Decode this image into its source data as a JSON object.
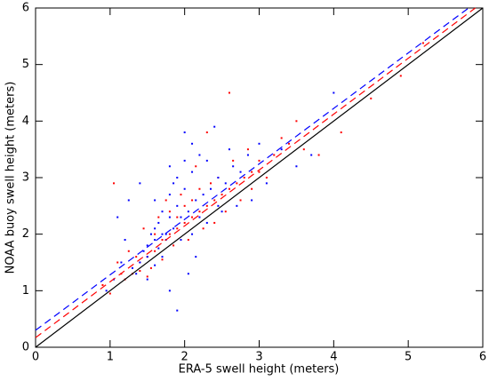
{
  "chart_data": {
    "type": "scatter",
    "xlabel": "ERA-5 swell height (meters)",
    "ylabel": "NOAA buoy swell height (meters)",
    "xlim": [
      0,
      6
    ],
    "ylim": [
      0,
      6
    ],
    "xticks": [
      0,
      1,
      2,
      3,
      4,
      5,
      6
    ],
    "yticks": [
      0,
      1,
      2,
      3,
      4,
      5,
      6
    ],
    "series": [
      {
        "color": "#ff0000",
        "x": [
          1.3,
          1.4,
          1.5,
          1.6,
          1.7,
          1.8,
          1.9,
          2.0,
          2.1,
          2.2,
          2.3,
          2.4,
          2.5,
          2.6,
          2.7,
          2.8,
          2.9,
          3.0,
          3.2,
          3.4,
          3.6,
          3.8,
          3.0,
          3.3,
          2.6,
          4.5,
          5.2,
          4.9,
          1.1,
          1.05,
          1.2,
          1.35,
          1.55,
          1.65,
          1.75,
          1.85,
          1.95,
          2.05,
          2.15,
          2.25,
          2.35,
          2.45,
          2.55,
          2.65,
          2.75,
          2.85,
          1.45,
          1.25,
          0.9,
          1.0,
          1.5,
          1.7,
          2.0,
          2.2,
          1.6,
          1.8,
          2.4,
          2.9,
          3.1,
          4.1,
          3.5,
          2.1,
          1.9,
          1.4,
          2.3,
          1.15
        ],
        "values": [
          1.3,
          1.5,
          1.6,
          1.7,
          1.9,
          2.0,
          2.1,
          2.2,
          2.3,
          2.4,
          2.5,
          2.6,
          2.7,
          2.8,
          2.9,
          3.0,
          3.1,
          3.3,
          3.4,
          3.6,
          3.5,
          3.4,
          3.1,
          3.7,
          4.5,
          4.4,
          5.38,
          4.8,
          1.5,
          2.9,
          1.2,
          1.6,
          1.4,
          2.3,
          2.6,
          1.8,
          2.7,
          1.9,
          3.2,
          2.1,
          2.9,
          3.0,
          2.4,
          3.3,
          2.6,
          3.5,
          2.1,
          1.7,
          1.1,
          0.95,
          1.25,
          1.55,
          2.5,
          2.8,
          2.0,
          2.4,
          2.2,
          2.8,
          3.0,
          3.8,
          4.0,
          2.6,
          2.3,
          1.35,
          3.8,
          1.3
        ]
      },
      {
        "color": "#0000ff",
        "x": [
          1.5,
          1.6,
          1.7,
          1.8,
          1.9,
          2.0,
          2.1,
          2.2,
          1.4,
          1.5,
          1.6,
          1.7,
          1.8,
          1.9,
          2.0,
          2.1,
          1.3,
          1.45,
          1.55,
          1.65,
          1.75,
          1.85,
          1.95,
          2.05,
          2.15,
          2.25,
          2.35,
          2.45,
          2.55,
          2.65,
          2.75,
          2.85,
          1.2,
          1.1,
          1.25,
          1.4,
          1.6,
          1.8,
          2.0,
          1.9,
          2.05,
          1.8,
          1.5,
          2.3,
          2.5,
          2.6,
          2.9,
          3.1,
          3.3,
          3.5,
          2.4,
          1.7,
          1.6,
          1.35,
          1.95,
          2.1,
          2.2,
          1.05,
          0.95,
          1.15,
          2.7,
          3.0,
          2.3,
          2.15,
          4.0,
          3.7,
          1.85,
          2.45,
          1.75,
          1.65
        ],
        "values": [
          1.6,
          1.9,
          2.0,
          2.3,
          2.5,
          2.8,
          3.1,
          3.4,
          1.5,
          1.8,
          2.1,
          2.4,
          2.7,
          3.0,
          3.3,
          3.6,
          1.4,
          1.7,
          2.0,
          2.2,
          2.0,
          2.1,
          2.3,
          2.4,
          2.6,
          2.7,
          2.8,
          3.0,
          2.9,
          3.2,
          3.1,
          3.4,
          1.9,
          2.3,
          2.6,
          2.9,
          2.6,
          3.2,
          3.8,
          0.65,
          1.3,
          1.0,
          1.2,
          2.2,
          2.4,
          3.5,
          2.6,
          2.9,
          3.5,
          3.2,
          3.9,
          1.6,
          1.45,
          1.3,
          1.9,
          2.0,
          2.3,
          1.2,
          1.0,
          1.5,
          2.5,
          3.6,
          3.3,
          1.6,
          4.5,
          3.4,
          2.9,
          2.5,
          1.9,
          1.75
        ]
      }
    ],
    "lines": [
      {
        "color": "#000000",
        "dash": false,
        "x": [
          0,
          6
        ],
        "values": [
          0,
          6
        ]
      },
      {
        "color": "#ff0000",
        "dash": true,
        "x": [
          0,
          5.9
        ],
        "values": [
          0.17,
          6
        ]
      },
      {
        "color": "#0000ff",
        "dash": true,
        "x": [
          0,
          5.81
        ],
        "values": [
          0.3,
          6
        ]
      }
    ]
  }
}
